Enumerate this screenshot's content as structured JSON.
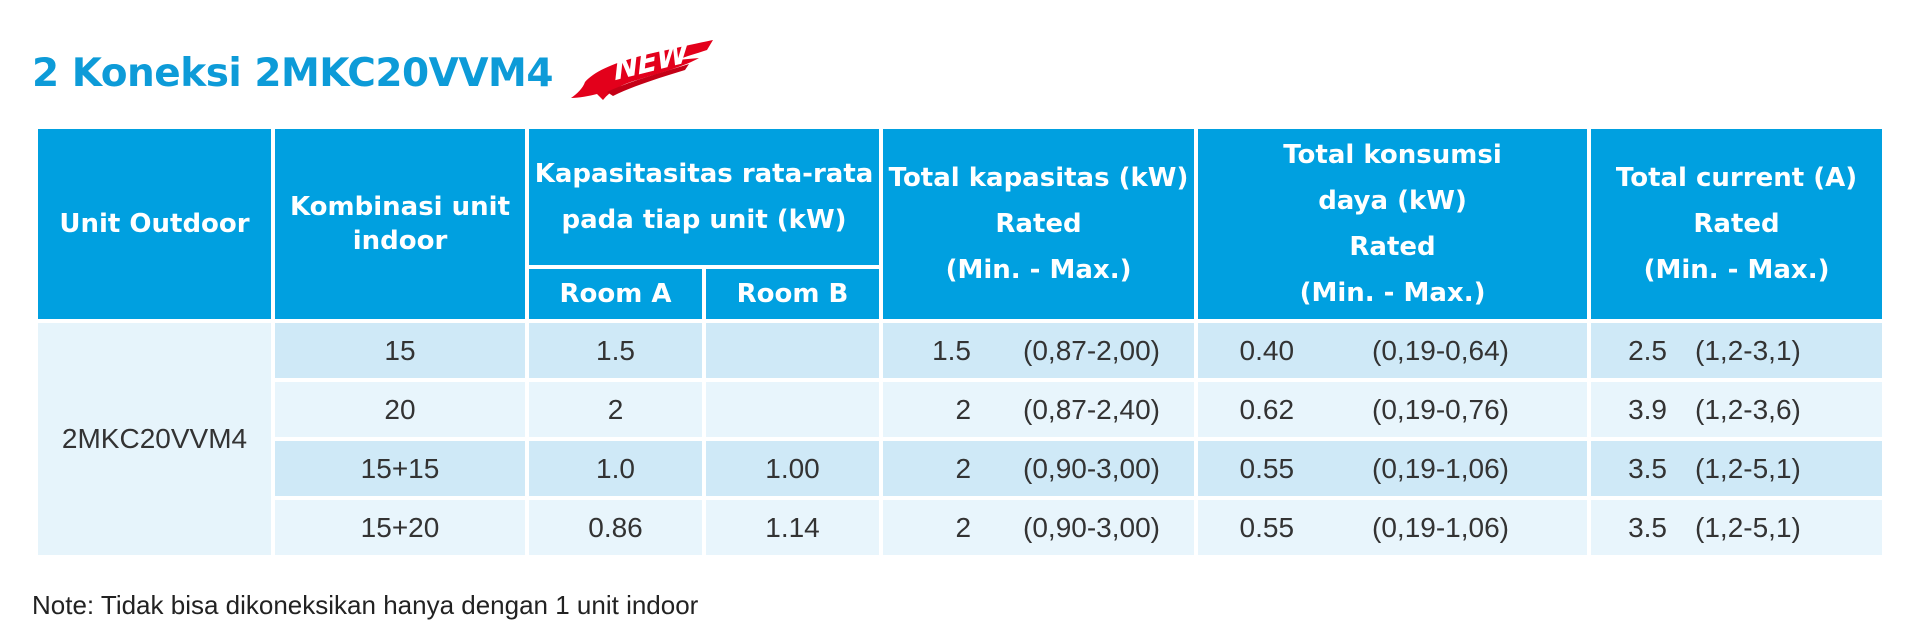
{
  "title": "2 Koneksi 2MKC20VVM4",
  "badge": {
    "text": "NEW",
    "color": "#e3001b"
  },
  "colors": {
    "accent": "#0d9bd8",
    "header_bg": "#00a0e0",
    "row_dark": "#cfe9f7",
    "row_light": "#e8f5fc"
  },
  "table": {
    "headers": {
      "outdoor": "Unit Outdoor",
      "indoor_combo": [
        "Kombinasi unit",
        "indoor"
      ],
      "capacity_per_unit": [
        "Kapasitasitas rata-rata",
        "pada tiap unit (kW)"
      ],
      "room_a": "Room A",
      "room_b": "Room B",
      "total_capacity": [
        "Total kapasitas (kW)",
        "Rated",
        "(Min. - Max.)"
      ],
      "total_power": [
        "Total konsumsi",
        "daya (kW)",
        "Rated",
        "(Min. - Max.)"
      ],
      "total_current": [
        "Total current (A)",
        "Rated",
        "(Min. - Max.)"
      ]
    },
    "outdoor_unit": "2MKC20VVM4",
    "rows": [
      {
        "combo": "15",
        "room_a": "1.5",
        "room_b": "",
        "cap_rated": "1.5",
        "cap_range": "(0,87-2,00)",
        "pow_rated": "0.40",
        "pow_range": "(0,19-0,64)",
        "cur_rated": "2.5",
        "cur_range": "(1,2-3,1)"
      },
      {
        "combo": "20",
        "room_a": "2",
        "room_b": "",
        "cap_rated": "2",
        "cap_range": "(0,87-2,40)",
        "pow_rated": "0.62",
        "pow_range": "(0,19-0,76)",
        "cur_rated": "3.9",
        "cur_range": "(1,2-3,6)"
      },
      {
        "combo": "15+15",
        "room_a": "1.0",
        "room_b": "1.00",
        "cap_rated": "2",
        "cap_range": "(0,90-3,00)",
        "pow_rated": "0.55",
        "pow_range": "(0,19-1,06)",
        "cur_rated": "3.5",
        "cur_range": "(1,2-5,1)"
      },
      {
        "combo": "15+20",
        "room_a": "0.86",
        "room_b": "1.14",
        "cap_rated": "2",
        "cap_range": "(0,90-3,00)",
        "pow_rated": "0.55",
        "pow_range": "(0,19-1,06)",
        "cur_rated": "3.5",
        "cur_range": "(1,2-5,1)"
      }
    ]
  },
  "note": "Note: Tidak bisa dikoneksikan hanya dengan 1 unit indoor"
}
